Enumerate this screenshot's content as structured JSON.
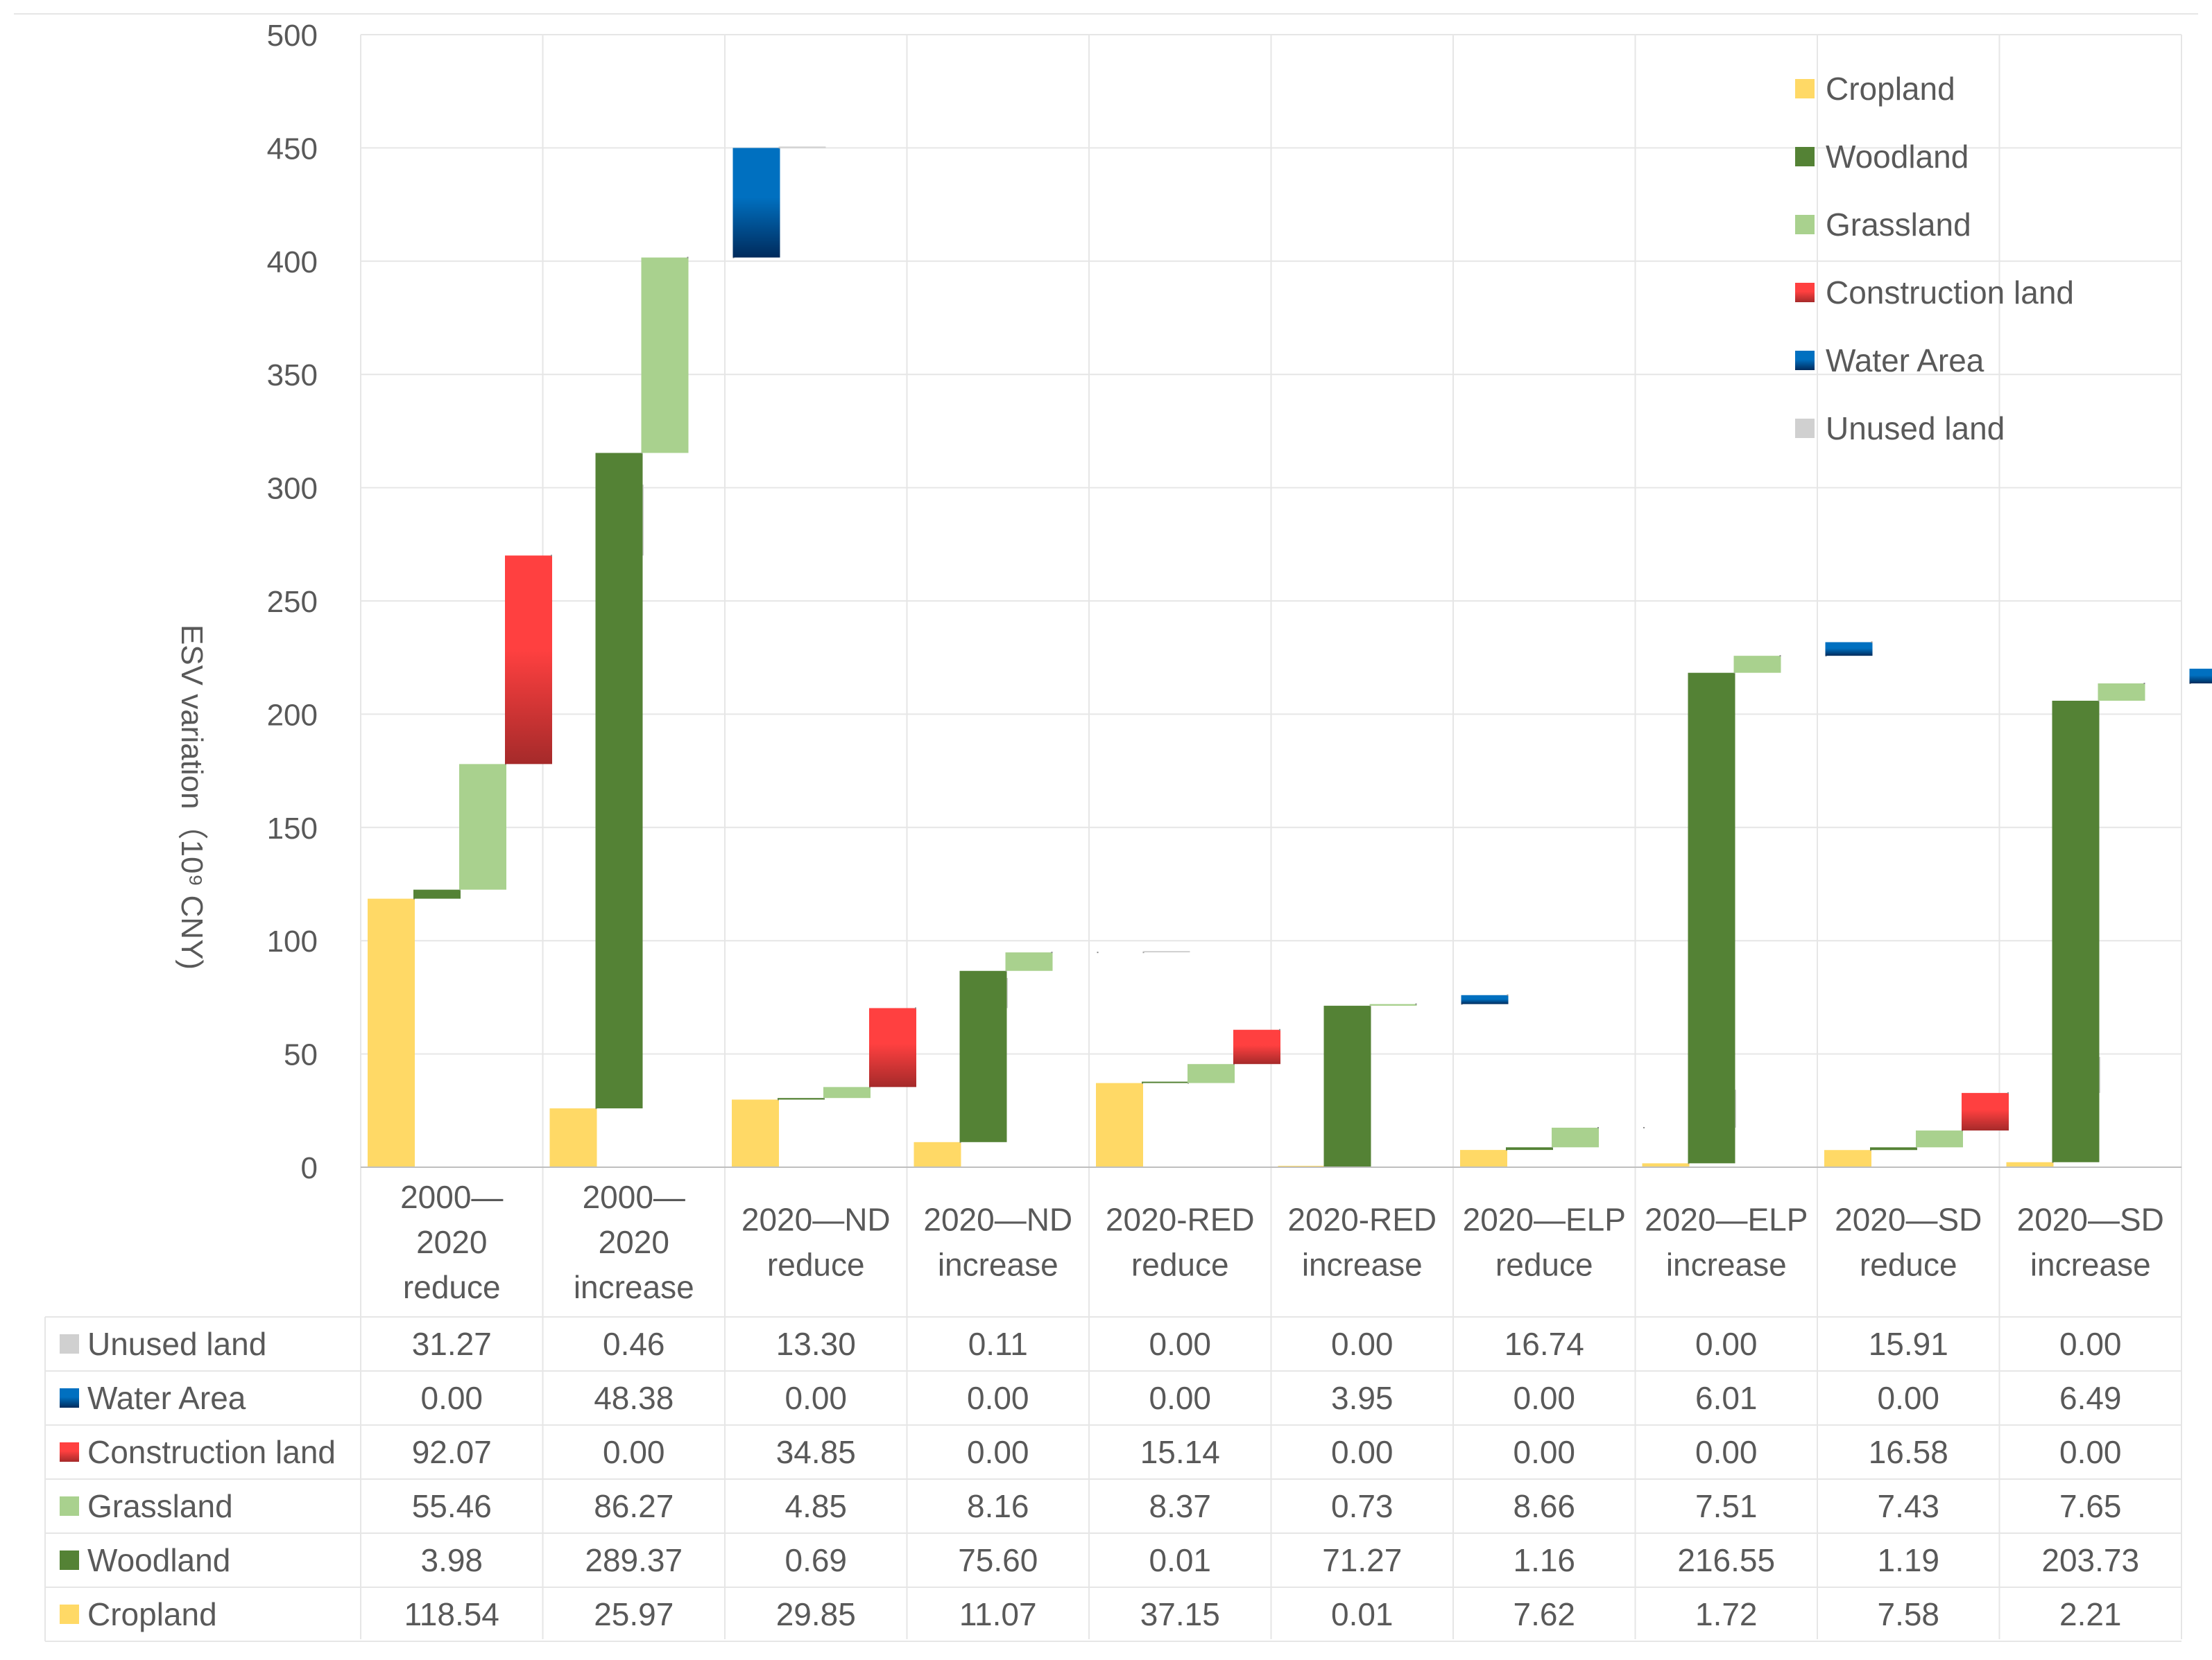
{
  "chart_data": {
    "type": "bar",
    "subtype": "stacked waterfall with data table",
    "ylabel": "ESV variation（10⁹ CNY)",
    "ylim": [
      0,
      500
    ],
    "yticks": [
      0,
      50,
      100,
      150,
      200,
      250,
      300,
      350,
      400,
      450,
      500
    ],
    "grid": true,
    "legend_position": "top-right",
    "categories": [
      [
        "2000—",
        "2020",
        "reduce"
      ],
      [
        "2000—",
        "2020",
        "increase"
      ],
      [
        "2020—ND",
        "reduce"
      ],
      [
        "2020—ND",
        "increase"
      ],
      [
        "2020-RED",
        "reduce"
      ],
      [
        "2020-RED",
        "increase"
      ],
      [
        "2020—ELP",
        "reduce"
      ],
      [
        "2020—ELP",
        "increase"
      ],
      [
        "2020—SD",
        "reduce"
      ],
      [
        "2020—SD",
        "increase"
      ]
    ],
    "series": [
      {
        "name": "Cropland",
        "color": "#FFD966",
        "color_dark": "#FFD966",
        "values": [
          118.54,
          25.97,
          29.85,
          11.07,
          37.15,
          0.01,
          7.62,
          1.72,
          7.58,
          2.21
        ],
        "labels": [
          "118.54",
          "25.97",
          "29.85",
          "11.07",
          "37.15",
          "0.01",
          "7.62",
          "1.72",
          "7.58",
          "2.21"
        ]
      },
      {
        "name": "Woodland",
        "color": "#548235",
        "color_dark": "#548235",
        "values": [
          3.98,
          289.37,
          0.69,
          75.6,
          0.01,
          71.27,
          1.16,
          216.55,
          1.19,
          203.73
        ],
        "labels": [
          "3.98",
          "289.37",
          "0.69",
          "75.60",
          "0.01",
          "71.27",
          "1.16",
          "216.55",
          "1.19",
          "203.73"
        ]
      },
      {
        "name": "Grassland",
        "color": "#A9D18E",
        "color_dark": "#A9D18E",
        "values": [
          55.46,
          86.27,
          4.85,
          8.16,
          8.37,
          0.73,
          8.66,
          7.51,
          7.43,
          7.65
        ],
        "labels": [
          "55.46",
          "86.27",
          "4.85",
          "8.16",
          "8.37",
          "0.73",
          "8.66",
          "7.51",
          "7.43",
          "7.65"
        ]
      },
      {
        "name": "Construction land",
        "color": "#FF4040",
        "color_dark": "#A52A2A",
        "values": [
          92.07,
          0.0,
          34.85,
          0.0,
          15.14,
          0.0,
          0.0,
          0.0,
          16.58,
          0.0
        ],
        "labels": [
          "92.07",
          "0.00",
          "34.85",
          "0.00",
          "15.14",
          "0.00",
          "0.00",
          "0.00",
          "16.58",
          "0.00"
        ]
      },
      {
        "name": "Water Area",
        "color": "#0070C0",
        "color_dark": "#002B5C",
        "values": [
          0.0,
          48.38,
          0.0,
          0.0,
          0.0,
          3.95,
          0.0,
          6.01,
          0.0,
          6.49
        ],
        "labels": [
          "0.00",
          "48.38",
          "0.00",
          "0.00",
          "0.00",
          "3.95",
          "0.00",
          "6.01",
          "0.00",
          "6.49"
        ]
      },
      {
        "name": "Unused land",
        "color": "#D0D0D0",
        "color_dark": "#D0D0D0",
        "values": [
          31.27,
          0.46,
          13.3,
          0.11,
          0.0,
          0.0,
          16.74,
          0.0,
          15.91,
          0.0
        ],
        "labels": [
          "31.27",
          "0.46",
          "13.30",
          "0.11",
          "0.00",
          "0.00",
          "16.74",
          "0.00",
          "15.91",
          "0.00"
        ]
      }
    ],
    "table_row_order": [
      "Unused land",
      "Water Area",
      "Construction land",
      "Grassland",
      "Woodland",
      "Cropland"
    ]
  }
}
